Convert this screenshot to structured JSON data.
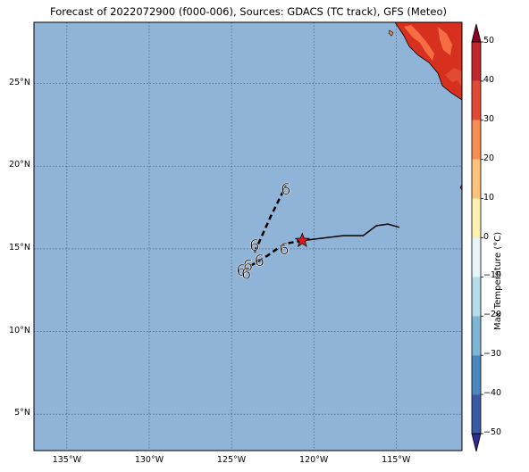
{
  "title": "Forecast of 2022072900 (f000-006), Sources: GDACS (TC track), GFS (Meteo)",
  "colorbar": {
    "label": "Max Temperature (°C)",
    "ticks": [
      "50",
      "40",
      "30",
      "20",
      "10",
      "0",
      "−10",
      "−20",
      "−30",
      "−40",
      "−50"
    ],
    "colors_top_to_bottom": [
      "#8b0025",
      "#c1272d",
      "#e34a33",
      "#f88d52",
      "#fdc37a",
      "#fff1b0",
      "#e6f5f9",
      "#b5dce9",
      "#7fb6d6",
      "#4a88bd",
      "#3a5aa6",
      "#2f2b8f"
    ]
  },
  "map": {
    "ocean_color": "#90b4d8",
    "lat_labels": [
      "25°N",
      "20°N",
      "15°N",
      "10°N",
      "5°N"
    ],
    "lon_labels": [
      "135°W",
      "130°W",
      "125°W",
      "120°W",
      "115°W"
    ],
    "extent": {
      "lon_min": -137,
      "lon_max": -111,
      "lat_min": 2.8,
      "lat_max": 28.7
    }
  },
  "chart_data": {
    "type": "map-track",
    "current_position": {
      "lon": -120.7,
      "lat": 15.5,
      "marker": "red-star"
    },
    "past_track": [
      [
        -120.7,
        15.5
      ],
      [
        -118.2,
        15.8
      ],
      [
        -117.0,
        15.8
      ],
      [
        -116.2,
        16.4
      ],
      [
        -115.5,
        16.5
      ],
      [
        -114.8,
        16.3
      ]
    ],
    "forecast_track_1": [
      [
        -120.7,
        15.5
      ],
      [
        -121.8,
        15.3
      ],
      [
        -122.8,
        14.6
      ],
      [
        -123.8,
        14.0
      ],
      [
        -124.2,
        13.6
      ]
    ],
    "forecast_track_2": [
      [
        -123.6,
        14.8
      ],
      [
        -122.6,
        17.0
      ],
      [
        -121.7,
        18.8
      ]
    ],
    "storm_symbols": [
      {
        "lon": -121.7,
        "lat": 18.6
      },
      {
        "lon": -123.6,
        "lat": 15.2
      },
      {
        "lon": -121.8,
        "lat": 15.0
      },
      {
        "lon": -123.3,
        "lat": 14.3
      },
      {
        "lon": -124.0,
        "lat": 14.0
      },
      {
        "lon": -124.4,
        "lat": 13.7
      },
      {
        "lon": -124.1,
        "lat": 13.5
      }
    ]
  }
}
